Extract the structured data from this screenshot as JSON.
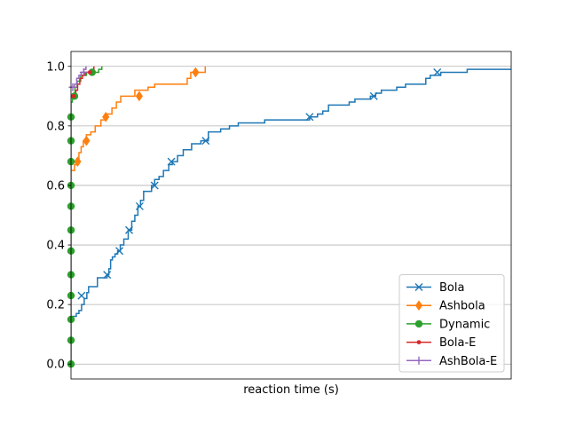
{
  "chart_data": {
    "type": "line",
    "step": true,
    "xlabel": "reaction time (s)",
    "ylabel": "",
    "title": "",
    "xlim": [
      0,
      100
    ],
    "ylim": [
      -0.05,
      1.05
    ],
    "x_ticks_shown": false,
    "y_ticks": [
      0.0,
      0.2,
      0.4,
      0.6,
      0.8,
      1.0
    ],
    "y_tick_labels": [
      "0.0",
      "0.2",
      "0.4",
      "0.6",
      "0.8",
      "1.0"
    ],
    "grid": "y",
    "legend_position": "lower-right",
    "series": [
      {
        "name": "Bola",
        "color": "#1f77b4",
        "marker": "x",
        "points": [
          [
            0,
            0.16
          ],
          [
            1.2,
            0.17
          ],
          [
            1.8,
            0.18
          ],
          [
            2.4,
            0.2
          ],
          [
            3,
            0.22
          ],
          [
            3.6,
            0.24
          ],
          [
            4,
            0.26
          ],
          [
            5.8,
            0.26
          ],
          [
            6,
            0.29
          ],
          [
            8,
            0.29
          ],
          [
            8.2,
            0.3
          ],
          [
            8.6,
            0.32
          ],
          [
            9,
            0.35
          ],
          [
            9.4,
            0.36
          ],
          [
            10,
            0.37
          ],
          [
            10.6,
            0.38
          ],
          [
            11.2,
            0.4
          ],
          [
            12,
            0.42
          ],
          [
            13,
            0.45
          ],
          [
            13.8,
            0.48
          ],
          [
            14.5,
            0.5
          ],
          [
            15.2,
            0.53
          ],
          [
            15.8,
            0.55
          ],
          [
            16.5,
            0.58
          ],
          [
            18.3,
            0.6
          ],
          [
            19,
            0.62
          ],
          [
            20,
            0.63
          ],
          [
            21,
            0.65
          ],
          [
            22.2,
            0.67
          ],
          [
            23,
            0.68
          ],
          [
            24.2,
            0.7
          ],
          [
            25.5,
            0.72
          ],
          [
            27.4,
            0.74
          ],
          [
            29.5,
            0.75
          ],
          [
            31.2,
            0.78
          ],
          [
            34,
            0.79
          ],
          [
            36,
            0.8
          ],
          [
            38,
            0.81
          ],
          [
            44,
            0.82
          ],
          [
            54,
            0.82
          ],
          [
            54.2,
            0.83
          ],
          [
            56,
            0.84
          ],
          [
            57.2,
            0.85
          ],
          [
            58.5,
            0.87
          ],
          [
            63.2,
            0.88
          ],
          [
            64.5,
            0.89
          ],
          [
            68,
            0.9
          ],
          [
            69.2,
            0.91
          ],
          [
            70.5,
            0.92
          ],
          [
            74,
            0.93
          ],
          [
            76,
            0.94
          ],
          [
            80.6,
            0.96
          ],
          [
            81.6,
            0.97
          ],
          [
            84,
            0.98
          ],
          [
            89.8,
            0.98
          ],
          [
            90,
            0.99
          ],
          [
            100,
            0.99
          ]
        ],
        "marker_points": [
          [
            2.4,
            0.23
          ],
          [
            8.2,
            0.3
          ],
          [
            11,
            0.38
          ],
          [
            13.2,
            0.45
          ],
          [
            15.6,
            0.53
          ],
          [
            19,
            0.6
          ],
          [
            22.8,
            0.68
          ],
          [
            30.6,
            0.75
          ],
          [
            54.2,
            0.83
          ],
          [
            68.8,
            0.9
          ],
          [
            83.2,
            0.98
          ]
        ]
      },
      {
        "name": "Ashbola",
        "color": "#ff7f0e",
        "marker": "diamond",
        "points": [
          [
            0,
            0.65
          ],
          [
            0.8,
            0.67
          ],
          [
            1.4,
            0.69
          ],
          [
            1.8,
            0.71
          ],
          [
            2.3,
            0.73
          ],
          [
            2.8,
            0.75
          ],
          [
            3.5,
            0.77
          ],
          [
            4.5,
            0.78
          ],
          [
            5.5,
            0.8
          ],
          [
            6.8,
            0.82
          ],
          [
            8,
            0.84
          ],
          [
            9.3,
            0.86
          ],
          [
            10.3,
            0.88
          ],
          [
            11.3,
            0.9
          ],
          [
            13.2,
            0.9
          ],
          [
            14.5,
            0.92
          ],
          [
            16,
            0.92
          ],
          [
            17.5,
            0.93
          ],
          [
            19,
            0.94
          ],
          [
            26,
            0.94
          ],
          [
            26.4,
            0.96
          ],
          [
            27.2,
            0.98
          ],
          [
            29.5,
            0.98
          ],
          [
            30.5,
            1.0
          ]
        ],
        "marker_points": [
          [
            1.5,
            0.68
          ],
          [
            3.5,
            0.75
          ],
          [
            7.9,
            0.83
          ],
          [
            15.5,
            0.9
          ],
          [
            28.3,
            0.98
          ]
        ]
      },
      {
        "name": "Dynamic",
        "color": "#2ca02c",
        "marker": "circle",
        "points": [
          [
            0,
            0.0
          ],
          [
            0,
            0.08
          ],
          [
            0,
            0.15
          ],
          [
            0,
            0.23
          ],
          [
            0,
            0.3
          ],
          [
            0,
            0.38
          ],
          [
            0,
            0.45
          ],
          [
            0,
            0.53
          ],
          [
            0,
            0.6
          ],
          [
            0,
            0.68
          ],
          [
            0,
            0.75
          ],
          [
            0,
            0.83
          ],
          [
            0,
            0.88
          ],
          [
            0.3,
            0.9
          ],
          [
            0.9,
            0.93
          ],
          [
            1.4,
            0.95
          ],
          [
            2.2,
            0.97
          ],
          [
            3.5,
            0.98
          ],
          [
            5,
            0.98
          ],
          [
            6.3,
            0.99
          ],
          [
            7,
            1.0
          ]
        ],
        "marker_points": [
          [
            0,
            0.0
          ],
          [
            0,
            0.08
          ],
          [
            0,
            0.15
          ],
          [
            0,
            0.23
          ],
          [
            0,
            0.3
          ],
          [
            0,
            0.38
          ],
          [
            0,
            0.45
          ],
          [
            0,
            0.53
          ],
          [
            0,
            0.6
          ],
          [
            0,
            0.68
          ],
          [
            0,
            0.75
          ],
          [
            0,
            0.83
          ],
          [
            0.8,
            0.9
          ],
          [
            4.8,
            0.98
          ]
        ]
      },
      {
        "name": "Bola-E",
        "color": "#d62728",
        "marker": "dot",
        "points": [
          [
            0,
            0.9
          ],
          [
            0.8,
            0.9
          ],
          [
            1.1,
            0.92
          ],
          [
            1.5,
            0.94
          ],
          [
            2,
            0.96
          ],
          [
            2.6,
            0.97
          ],
          [
            3.2,
            0.98
          ],
          [
            4.2,
            0.98
          ],
          [
            4.8,
            0.99
          ],
          [
            5.2,
            1.0
          ]
        ],
        "marker_points": [
          [
            0.6,
            0.9
          ],
          [
            4.3,
            0.98
          ]
        ]
      },
      {
        "name": "AshBola-E",
        "color": "#9467bd",
        "marker": "plus",
        "points": [
          [
            0,
            0.93
          ],
          [
            0.4,
            0.93
          ],
          [
            0.8,
            0.94
          ],
          [
            1.3,
            0.96
          ],
          [
            1.8,
            0.97
          ],
          [
            2.3,
            0.98
          ],
          [
            2.9,
            0.99
          ],
          [
            3.4,
            1.0
          ]
        ],
        "marker_points": [
          [
            0.4,
            0.93
          ],
          [
            2.9,
            0.98
          ]
        ]
      }
    ]
  }
}
